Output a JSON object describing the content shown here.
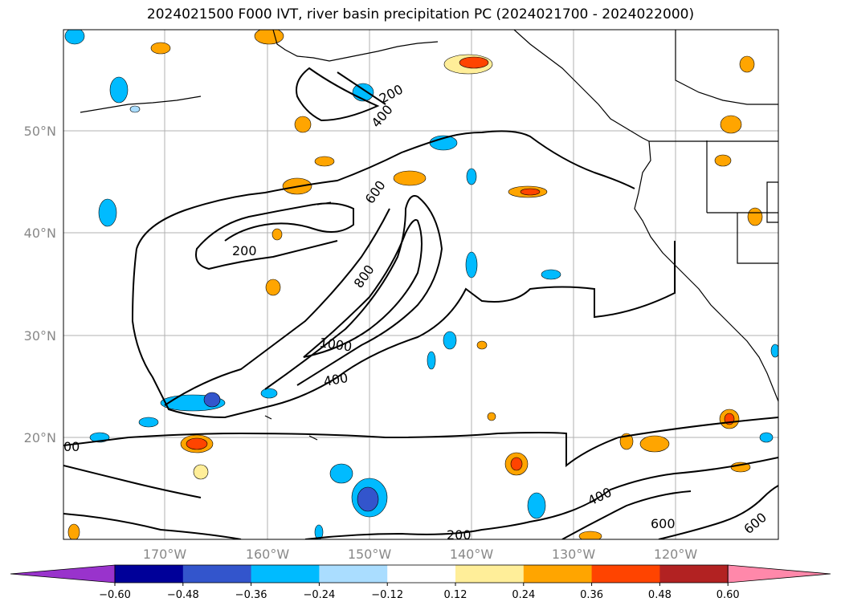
{
  "title": "2024021500 F000 IVT, river basin precipitation PC (2024021700 - 2024022000)",
  "lat_labels": [
    "50°N",
    "40°N",
    "30°N",
    "20°N"
  ],
  "lon_labels": [
    "170°W",
    "160°W",
    "150°W",
    "140°W",
    "130°W",
    "120°W"
  ],
  "contour_labels": [
    "200",
    "400",
    "600",
    "800",
    "1000",
    "400",
    "200",
    "400",
    "600",
    "600",
    "200",
    "00"
  ],
  "colorbar": {
    "ticks": [
      "−0.60",
      "−0.48",
      "−0.36",
      "−0.24",
      "−0.12",
      "0.12",
      "0.24",
      "0.36",
      "0.48",
      "0.60"
    ],
    "colors": [
      "#9933CC",
      "#000099",
      "#3355CC",
      "#00BBFF",
      "#AADDFF",
      "#FFFFFF",
      "#FFEE99",
      "#FFA500",
      "#FF4400",
      "#B22222",
      "#FF88AA"
    ]
  },
  "colors": {
    "contour": "#000000",
    "grid": "#b0b0b0",
    "axis_label": "#888888"
  }
}
